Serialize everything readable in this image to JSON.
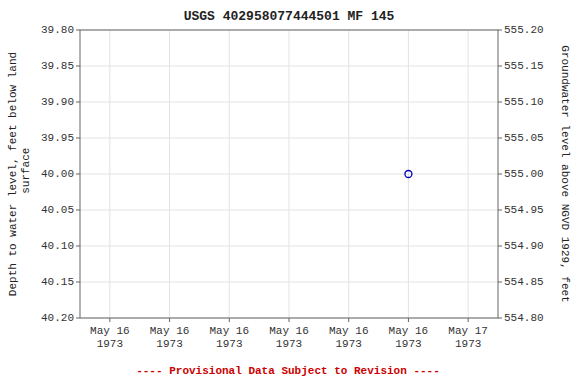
{
  "chart_data": {
    "type": "scatter",
    "title": "USGS 402958077444501 MF   145",
    "y_label": "Depth to water level, feet below land\n surface",
    "y2_label": "Groundwater level above NGVD 1929, feet",
    "categories": [
      "May 16\n1973",
      "May 16\n1973",
      "May 16\n1973",
      "May 16\n1973",
      "May 16\n1973",
      "May 16\n1973",
      "May 17\n1973"
    ],
    "series": [
      {
        "values": [
          null,
          null,
          null,
          null,
          null,
          40.0,
          null
        ],
        "color": "#0000bb",
        "marker": "open-circle"
      }
    ],
    "ylim": [
      40.2,
      39.8
    ],
    "yticks": [
      {
        "value": 39.8,
        "label": "39.80"
      },
      39.85,
      {
        "value": 39.9,
        "label": "39.90"
      },
      39.95,
      {
        "value": 40.0,
        "label": "40.00"
      },
      40.05,
      {
        "value": 40.1,
        "label": "40.10"
      },
      40.15,
      {
        "value": 40.2,
        "label": "40.20"
      }
    ],
    "y2lim": [
      554.8,
      555.2
    ],
    "y2ticks": [
      {
        "value": 555.2,
        "label": "555.20"
      },
      555.15,
      {
        "value": 555.1,
        "label": "555.10"
      },
      555.05,
      {
        "value": 555.0,
        "label": "555.00"
      },
      554.95,
      {
        "value": 554.9,
        "label": "554.90"
      },
      554.85,
      {
        "value": 554.8,
        "label": "554.80"
      }
    ],
    "grid": true,
    "annotations": [
      {
        "text": "---- Provisional Data Subject to Revision ----",
        "color": "#cc0000"
      }
    ]
  }
}
